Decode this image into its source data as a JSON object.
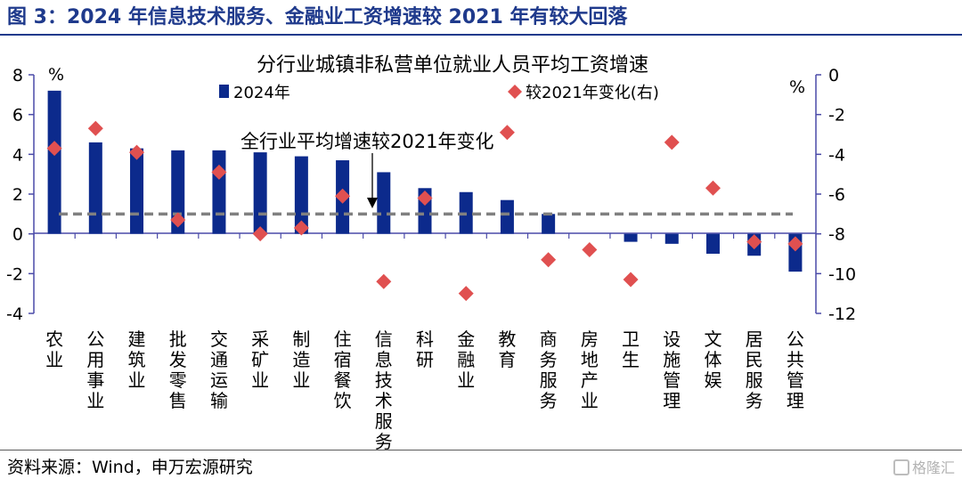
{
  "figure_title": "图 3：2024 年信息技术服务、金融业工资增速较 2021 年有较大回落",
  "source_note": "资料来源：Wind，申万宏源研究",
  "watermark": "格隆汇",
  "chart_data": {
    "type": "bar",
    "title": "分行业城镇非私营单位就业人员平均工资增速",
    "categories": [
      "农业",
      "公用事业",
      "建筑业",
      "批发零售",
      "交通运输",
      "采矿业",
      "制造业",
      "住宿餐饮",
      "信息技术服务",
      "科研",
      "金融业",
      "教育",
      "商务服务",
      "房地产业",
      "卫生",
      "设施管理",
      "文体娱",
      "居民服务",
      "公共管理"
    ],
    "series": [
      {
        "name": "2024年",
        "axis": "left",
        "kind": "bar",
        "color": "#0c2a8c",
        "values": [
          7.2,
          4.6,
          4.3,
          4.2,
          4.2,
          4.1,
          3.9,
          3.7,
          3.1,
          2.3,
          2.1,
          1.7,
          1.0,
          0.0,
          -0.4,
          -0.5,
          -1.0,
          -1.1,
          -1.9
        ]
      },
      {
        "name": "较2021年变化(右)",
        "axis": "right",
        "kind": "scatter",
        "marker": "diamond",
        "color": "#e05050",
        "values": [
          -3.7,
          -2.7,
          -3.9,
          -7.3,
          -4.9,
          -8.0,
          -7.7,
          -6.1,
          -10.4,
          -6.2,
          -11.0,
          -2.9,
          -9.3,
          -8.8,
          -10.3,
          -3.4,
          -5.7,
          -8.4,
          -8.5
        ]
      }
    ],
    "reference_line": {
      "label": "全行业平均增速较2021年变化",
      "axis": "right",
      "value": -7.0,
      "style": "dashed",
      "color": "#7f7f7f"
    },
    "y_left": {
      "unit": "%",
      "ylim": [
        -4,
        8
      ],
      "ticks": [
        -4,
        -2,
        0,
        2,
        4,
        6,
        8
      ]
    },
    "y_right": {
      "unit": "%",
      "ylim": [
        -12,
        0
      ],
      "ticks": [
        -12,
        -10,
        -8,
        -6,
        -4,
        -2,
        0
      ]
    },
    "legend": "top-center",
    "grid": false
  }
}
